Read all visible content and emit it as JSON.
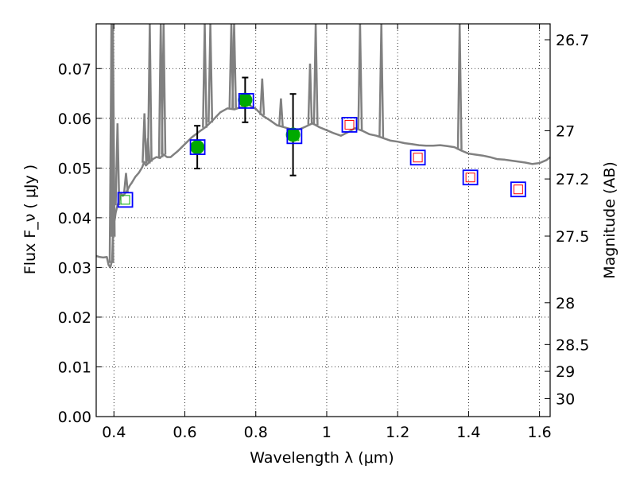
{
  "chart_data": {
    "type": "scatter",
    "xlabel": "Wavelength λ (μm)",
    "ylabel": "Flux F_ν ( μJy )",
    "ylabel_right": "Magnitude (AB)",
    "xlim": [
      0.35,
      1.63
    ],
    "ylim": [
      0.0,
      0.079
    ],
    "grid": true,
    "x_ticks": [
      0.4,
      0.6,
      0.8,
      1.0,
      1.2,
      1.4,
      1.6
    ],
    "x_tick_labels": [
      "0.4",
      "0.6",
      "0.8",
      "1",
      "1.2",
      "1.4",
      "1.6"
    ],
    "y_ticks": [
      0.0,
      0.01,
      0.02,
      0.03,
      0.04,
      0.05,
      0.06,
      0.07
    ],
    "y_tick_labels": [
      "0.00",
      "0.01",
      "0.02",
      "0.03",
      "0.04",
      "0.05",
      "0.06",
      "0.07"
    ],
    "right_ticks": [
      {
        "label": "26.7",
        "flux": 0.0758
      },
      {
        "label": "27",
        "flux": 0.0575
      },
      {
        "label": "27.2",
        "flux": 0.0478
      },
      {
        "label": "27.5",
        "flux": 0.0363
      },
      {
        "label": "28",
        "flux": 0.0229
      },
      {
        "label": "28.5",
        "flux": 0.0145
      },
      {
        "label": "29",
        "flux": 0.0091
      },
      {
        "label": "30",
        "flux": 0.0036
      }
    ],
    "colors": {
      "template": "#808080",
      "observed": "#00aa00",
      "model_box": "#0000ff",
      "model_inner_red": "#ff0000",
      "model_inner_green": "#00aa00",
      "errorbar": "#000000"
    },
    "series": [
      {
        "role": "template_spectrum",
        "x": [
          0.35,
          0.36,
          0.37,
          0.38,
          0.385,
          0.39,
          0.395,
          0.398,
          0.4,
          0.402,
          0.405,
          0.41,
          0.415,
          0.42,
          0.425,
          0.43,
          0.435,
          0.44,
          0.445,
          0.45,
          0.46,
          0.47,
          0.48,
          0.485,
          0.49,
          0.5,
          0.51,
          0.52,
          0.53,
          0.535,
          0.54,
          0.55,
          0.56,
          0.57,
          0.58,
          0.6,
          0.62,
          0.64,
          0.65,
          0.66,
          0.68,
          0.7,
          0.72,
          0.74,
          0.76,
          0.78,
          0.8,
          0.82,
          0.84,
          0.86,
          0.88,
          0.9,
          0.92,
          0.94,
          0.96,
          0.98,
          1.0,
          1.02,
          1.04,
          1.06,
          1.08,
          1.1,
          1.12,
          1.14,
          1.16,
          1.18,
          1.2,
          1.22,
          1.24,
          1.26,
          1.28,
          1.3,
          1.32,
          1.34,
          1.36,
          1.38,
          1.4,
          1.42,
          1.44,
          1.46,
          1.48,
          1.5,
          1.52,
          1.54,
          1.56,
          1.58,
          1.6,
          1.62,
          1.63
        ],
        "y": [
          0.0323,
          0.0321,
          0.032,
          0.0321,
          0.0305,
          0.03,
          0.0315,
          0.0385,
          0.0405,
          0.0395,
          0.041,
          0.0425,
          0.0435,
          0.045,
          0.0444,
          0.0448,
          0.0452,
          0.0458,
          0.0465,
          0.047,
          0.0482,
          0.049,
          0.0502,
          0.0512,
          0.0505,
          0.0512,
          0.0518,
          0.0522,
          0.052,
          0.0524,
          0.0527,
          0.0522,
          0.0522,
          0.0528,
          0.0534,
          0.0548,
          0.0562,
          0.0573,
          0.0578,
          0.0583,
          0.0597,
          0.0612,
          0.062,
          0.0618,
          0.0623,
          0.0627,
          0.0619,
          0.0605,
          0.0596,
          0.0586,
          0.0582,
          0.0578,
          0.0577,
          0.0583,
          0.059,
          0.0582,
          0.0576,
          0.057,
          0.0565,
          0.0572,
          0.058,
          0.0575,
          0.0568,
          0.0565,
          0.056,
          0.0555,
          0.0553,
          0.055,
          0.0548,
          0.0546,
          0.0545,
          0.0545,
          0.0546,
          0.0544,
          0.0542,
          0.0535,
          0.0529,
          0.0527,
          0.0525,
          0.0522,
          0.0518,
          0.0517,
          0.0515,
          0.0513,
          0.0511,
          0.0508,
          0.051,
          0.0516,
          0.0522
        ]
      },
      {
        "role": "template_emission_lines",
        "x": [
          0.393,
          0.397,
          0.41,
          0.434,
          0.486,
          0.496,
          0.501,
          0.532,
          0.54,
          0.656,
          0.672,
          0.731,
          0.739,
          0.818,
          0.871,
          0.953,
          0.969,
          1.094,
          1.154,
          1.375
        ],
        "y": [
          0.079,
          0.079,
          0.059,
          0.049,
          0.061,
          0.056,
          0.079,
          0.079,
          0.079,
          0.079,
          0.079,
          0.079,
          0.079,
          0.068,
          0.064,
          0.071,
          0.079,
          0.079,
          0.079,
          0.079
        ]
      },
      {
        "role": "observed_flux",
        "x": [
          0.635,
          0.77,
          0.905
        ],
        "y": [
          0.0542,
          0.0637,
          0.0567
        ],
        "yerr": [
          0.0043,
          0.0045,
          0.0082
        ]
      },
      {
        "role": "model_flux",
        "x": [
          0.432,
          0.636,
          0.773,
          0.909,
          1.064,
          1.257,
          1.405,
          1.54
        ],
        "y": [
          0.0436,
          0.0542,
          0.0635,
          0.0564,
          0.0587,
          0.0521,
          0.0481,
          0.0457
        ],
        "inner": [
          "green",
          "green",
          "green",
          "green",
          "red",
          "red",
          "red",
          "red"
        ]
      }
    ]
  }
}
